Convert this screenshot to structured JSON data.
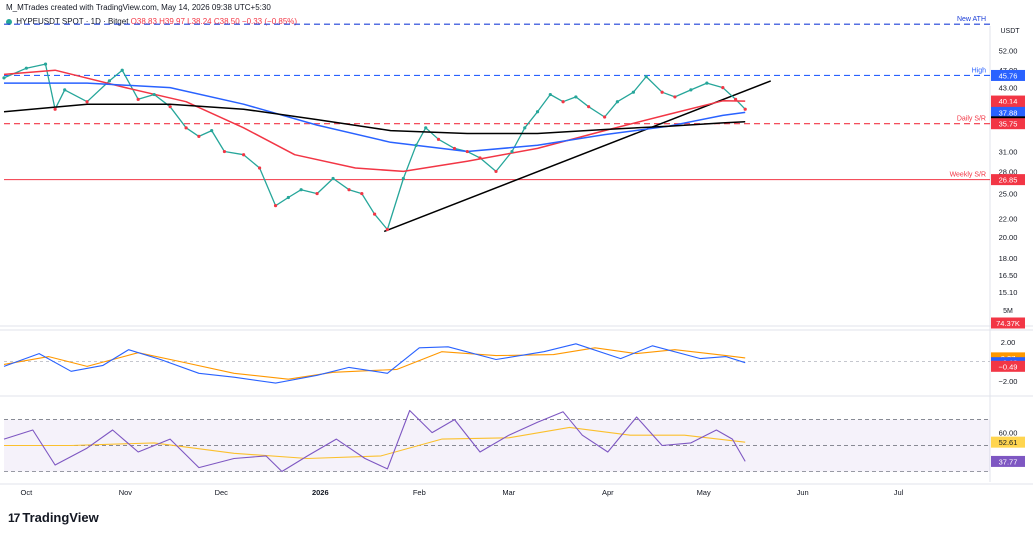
{
  "header": {
    "line1": "M_MTrades created with TradingView.com, May 14, 2026 09:38 UTC+5:30",
    "symbol": "HYPEUSDT SPOT",
    "interval": "1D",
    "exchange": "Bitget",
    "ohlc": "O38.83 H39.97 L38.24 C38.50",
    "change": "−0.33 (−0.85%)"
  },
  "chart_data": {
    "type": "line",
    "price_scale_unit": "USDT",
    "x_ticks": [
      "Oct",
      "Nov",
      "Dec",
      "2026",
      "Feb",
      "Mar",
      "Apr",
      "May",
      "Jun",
      "Jul"
    ],
    "y_ticks": [
      "52.00",
      "47.00",
      "43.00",
      "31.00",
      "28.00",
      "25.00",
      "22.00",
      "20.00",
      "18.00",
      "16.50",
      "15.10"
    ],
    "y_scale": "log",
    "ylim": [
      14.5,
      56
    ],
    "levels": [
      {
        "label": "New ATH",
        "value": 59.5,
        "color": "#1e40d8",
        "style": "dashed"
      },
      {
        "label": "High",
        "value": 45.76,
        "color": "#2962ff",
        "style": "dashed"
      },
      {
        "label": "Daily S/R",
        "value": 35.75,
        "color": "#f23645",
        "style": "dashed"
      },
      {
        "label": "Weekly S/R",
        "value": 26.85,
        "color": "#f23645",
        "style": "solid"
      }
    ],
    "price_badges": [
      {
        "text": "45.76",
        "value": 45.76,
        "color": "#2962ff"
      },
      {
        "text": "40.14",
        "value": 40.14,
        "color": "#f23645"
      },
      {
        "text": "38.50",
        "value": 38.5,
        "color": "#f23645"
      },
      {
        "text": "19:51:24",
        "value": 37.0,
        "color": "#f23645"
      },
      {
        "text": "37.88",
        "value": 37.88,
        "color": "#2962ff"
      },
      {
        "text": "36.09",
        "value": 36.09,
        "color": "#000000"
      },
      {
        "text": "35.75",
        "value": 35.75,
        "color": "#f23645"
      },
      {
        "text": "26.85",
        "value": 26.85,
        "color": "#f23645"
      }
    ],
    "trendline_points": [
      [
        "2026-01-21",
        20.6
      ],
      [
        "2026-05-22",
        44.5
      ]
    ],
    "series": [
      {
        "name": "close",
        "color": "#26a69a",
        "values": [
          [
            "2025-09-24",
            45.2
          ],
          [
            "2025-10-01",
            47.5
          ],
          [
            "2025-10-07",
            48.5
          ],
          [
            "2025-10-10",
            38.5
          ],
          [
            "2025-10-13",
            42.5
          ],
          [
            "2025-10-20",
            40.0
          ],
          [
            "2025-10-27",
            44.5
          ],
          [
            "2025-10-31",
            47.0
          ],
          [
            "2025-11-05",
            40.5
          ],
          [
            "2025-11-10",
            41.5
          ],
          [
            "2025-11-15",
            39.0
          ],
          [
            "2025-11-20",
            35.0
          ],
          [
            "2025-11-24",
            33.5
          ],
          [
            "2025-11-28",
            34.5
          ],
          [
            "2025-12-02",
            31.0
          ],
          [
            "2025-12-08",
            30.5
          ],
          [
            "2025-12-13",
            28.5
          ],
          [
            "2025-12-18",
            23.5
          ],
          [
            "2025-12-22",
            24.5
          ],
          [
            "2025-12-26",
            25.5
          ],
          [
            "2025-12-31",
            25.0
          ],
          [
            "2026-01-05",
            27.0
          ],
          [
            "2026-01-10",
            25.5
          ],
          [
            "2026-01-14",
            25.0
          ],
          [
            "2026-01-18",
            22.5
          ],
          [
            "2026-01-22",
            20.8
          ],
          [
            "2026-01-27",
            27.0
          ],
          [
            "2026-01-31",
            32.0
          ],
          [
            "2026-02-03",
            35.0
          ],
          [
            "2026-02-07",
            33.0
          ],
          [
            "2026-02-12",
            31.5
          ],
          [
            "2026-02-16",
            31.0
          ],
          [
            "2026-02-20",
            30.0
          ],
          [
            "2026-02-25",
            28.0
          ],
          [
            "2026-03-02",
            31.0
          ],
          [
            "2026-03-06",
            35.0
          ],
          [
            "2026-03-10",
            38.0
          ],
          [
            "2026-03-14",
            41.5
          ],
          [
            "2026-03-18",
            40.0
          ],
          [
            "2026-03-22",
            41.0
          ],
          [
            "2026-03-26",
            39.0
          ],
          [
            "2026-03-31",
            37.0
          ],
          [
            "2026-04-04",
            40.0
          ],
          [
            "2026-04-09",
            42.0
          ],
          [
            "2026-04-13",
            45.5
          ],
          [
            "2026-04-18",
            42.0
          ],
          [
            "2026-04-22",
            41.0
          ],
          [
            "2026-04-27",
            42.5
          ],
          [
            "2026-05-02",
            44.0
          ],
          [
            "2026-05-07",
            43.0
          ],
          [
            "2026-05-11",
            40.5
          ],
          [
            "2026-05-14",
            38.5
          ]
        ]
      },
      {
        "name": "EMA 50",
        "color": "#f23645",
        "values": [
          [
            "2025-09-24",
            46.0
          ],
          [
            "2025-10-10",
            47.0
          ],
          [
            "2025-11-01",
            43.0
          ],
          [
            "2025-11-20",
            40.0
          ],
          [
            "2025-12-08",
            35.0
          ],
          [
            "2025-12-24",
            30.5
          ],
          [
            "2026-01-12",
            28.5
          ],
          [
            "2026-01-27",
            28.0
          ],
          [
            "2026-02-16",
            29.5
          ],
          [
            "2026-03-10",
            31.5
          ],
          [
            "2026-03-31",
            34.5
          ],
          [
            "2026-04-20",
            37.5
          ],
          [
            "2026-05-07",
            40.2
          ],
          [
            "2026-05-14",
            40.14
          ]
        ]
      },
      {
        "name": "EMA 100",
        "color": "#2962ff",
        "values": [
          [
            "2025-09-24",
            44.0
          ],
          [
            "2025-10-20",
            44.0
          ],
          [
            "2025-11-15",
            43.0
          ],
          [
            "2025-12-08",
            39.5
          ],
          [
            "2025-12-31",
            35.5
          ],
          [
            "2026-01-23",
            32.5
          ],
          [
            "2026-02-16",
            31.0
          ],
          [
            "2026-03-10",
            32.0
          ],
          [
            "2026-03-31",
            33.8
          ],
          [
            "2026-04-20",
            35.3
          ],
          [
            "2026-05-07",
            37.3
          ],
          [
            "2026-05-14",
            37.88
          ]
        ]
      },
      {
        "name": "EMA 200",
        "color": "#000000",
        "values": [
          [
            "2025-09-24",
            38.0
          ],
          [
            "2025-10-20",
            39.5
          ],
          [
            "2025-11-15",
            39.5
          ],
          [
            "2025-12-08",
            38.5
          ],
          [
            "2025-12-31",
            36.5
          ],
          [
            "2026-01-23",
            34.5
          ],
          [
            "2026-02-16",
            34.0
          ],
          [
            "2026-03-10",
            34.0
          ],
          [
            "2026-03-31",
            34.7
          ],
          [
            "2026-04-20",
            35.3
          ],
          [
            "2026-05-07",
            35.9
          ],
          [
            "2026-05-14",
            36.09
          ]
        ]
      }
    ],
    "volume_panel": {
      "badge": "74.37K",
      "scale_label": "5M",
      "color": "#f23645"
    },
    "macd_panel": {
      "ticks": [
        "2.00",
        "−2.00"
      ],
      "ylim": [
        -2.8,
        2.8
      ],
      "badges": [
        {
          "text": "0.37",
          "value": 0.37,
          "color": "#ff9800"
        },
        {
          "text": "−0.12",
          "value": -0.12,
          "color": "#2962ff"
        },
        {
          "text": "−0.49",
          "value": -0.49,
          "color": "#f23645"
        }
      ],
      "macd": [
        [
          "2025-09-24",
          -0.5
        ],
        [
          "2025-10-05",
          0.8
        ],
        [
          "2025-10-15",
          -1.0
        ],
        [
          "2025-10-25",
          -0.4
        ],
        [
          "2025-11-02",
          1.2
        ],
        [
          "2025-11-12",
          0.2
        ],
        [
          "2025-11-24",
          -1.2
        ],
        [
          "2025-12-05",
          -1.6
        ],
        [
          "2025-12-18",
          -2.2
        ],
        [
          "2025-12-31",
          -1.4
        ],
        [
          "2026-01-10",
          -0.6
        ],
        [
          "2026-01-22",
          -1.2
        ],
        [
          "2026-02-01",
          1.4
        ],
        [
          "2026-02-10",
          1.5
        ],
        [
          "2026-02-25",
          0.2
        ],
        [
          "2026-03-12",
          1.0
        ],
        [
          "2026-03-22",
          1.8
        ],
        [
          "2026-04-05",
          0.3
        ],
        [
          "2026-04-15",
          1.6
        ],
        [
          "2026-04-30",
          0.3
        ],
        [
          "2026-05-08",
          0.5
        ],
        [
          "2026-05-14",
          -0.12
        ]
      ],
      "signal": [
        [
          "2025-09-24",
          -0.3
        ],
        [
          "2025-10-08",
          0.5
        ],
        [
          "2025-10-20",
          -0.5
        ],
        [
          "2025-11-05",
          0.9
        ],
        [
          "2025-11-18",
          0.0
        ],
        [
          "2025-12-05",
          -1.2
        ],
        [
          "2025-12-22",
          -1.8
        ],
        [
          "2026-01-05",
          -1.1
        ],
        [
          "2026-01-25",
          -0.8
        ],
        [
          "2026-02-08",
          1.0
        ],
        [
          "2026-02-25",
          0.6
        ],
        [
          "2026-03-15",
          0.7
        ],
        [
          "2026-03-28",
          1.4
        ],
        [
          "2026-04-10",
          0.8
        ],
        [
          "2026-04-22",
          1.2
        ],
        [
          "2026-05-08",
          0.6
        ],
        [
          "2026-05-14",
          0.37
        ]
      ]
    },
    "rsi_panel": {
      "ticks": [
        "60.00"
      ],
      "ylim": [
        25,
        82
      ],
      "band": [
        30,
        70
      ],
      "badges": [
        {
          "text": "52.61",
          "value": 52.61,
          "color": "#ffd54f"
        },
        {
          "text": "37.77",
          "value": 37.77,
          "color": "#7e57c2"
        }
      ],
      "rsi": [
        [
          "2025-09-24",
          55
        ],
        [
          "2025-10-03",
          62
        ],
        [
          "2025-10-10",
          35
        ],
        [
          "2025-10-20",
          48
        ],
        [
          "2025-10-28",
          62
        ],
        [
          "2025-11-05",
          45
        ],
        [
          "2025-11-15",
          55
        ],
        [
          "2025-11-24",
          33
        ],
        [
          "2025-12-05",
          40
        ],
        [
          "2025-12-15",
          42
        ],
        [
          "2025-12-20",
          30
        ],
        [
          "2025-12-28",
          42
        ],
        [
          "2026-01-06",
          55
        ],
        [
          "2026-01-15",
          40
        ],
        [
          "2026-01-22",
          32
        ],
        [
          "2026-01-29",
          77
        ],
        [
          "2026-02-05",
          60
        ],
        [
          "2026-02-12",
          70
        ],
        [
          "2026-02-20",
          45
        ],
        [
          "2026-03-01",
          58
        ],
        [
          "2026-03-10",
          68
        ],
        [
          "2026-03-18",
          76
        ],
        [
          "2026-03-24",
          58
        ],
        [
          "2026-04-01",
          45
        ],
        [
          "2026-04-10",
          72
        ],
        [
          "2026-04-18",
          50
        ],
        [
          "2026-04-27",
          52
        ],
        [
          "2026-05-05",
          62
        ],
        [
          "2026-05-10",
          55
        ],
        [
          "2026-05-14",
          37.77
        ]
      ],
      "rsi_ma": [
        [
          "2025-09-24",
          50
        ],
        [
          "2025-10-15",
          50
        ],
        [
          "2025-11-10",
          52
        ],
        [
          "2025-12-05",
          44
        ],
        [
          "2025-12-28",
          40
        ],
        [
          "2026-01-20",
          42
        ],
        [
          "2026-02-08",
          55
        ],
        [
          "2026-03-01",
          56
        ],
        [
          "2026-03-20",
          64
        ],
        [
          "2026-04-08",
          58
        ],
        [
          "2026-04-25",
          58
        ],
        [
          "2026-05-14",
          52.61
        ]
      ]
    }
  },
  "footer": {
    "brand": "TradingView",
    "logo_glyph": "17"
  }
}
